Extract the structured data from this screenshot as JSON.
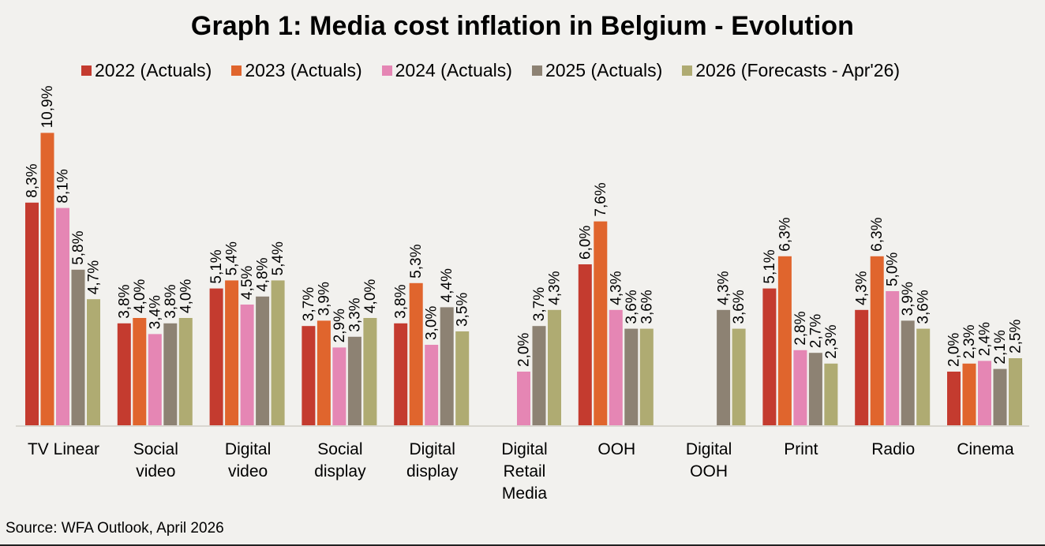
{
  "chart_data": {
    "type": "bar",
    "title": "Graph 1: Media cost inflation in Belgium - Evolution",
    "xlabel": "",
    "ylabel": "",
    "ylim": [
      0,
      11.5
    ],
    "grid": false,
    "legend_position": "top",
    "value_format": "comma-decimal percent",
    "categories": [
      [
        "TV Linear"
      ],
      [
        "Social",
        "video"
      ],
      [
        "Digital",
        "video"
      ],
      [
        "Social",
        "display"
      ],
      [
        "Digital",
        "display"
      ],
      [
        "Digital",
        "Retail",
        "Media"
      ],
      [
        "OOH"
      ],
      [
        "Digital",
        "OOH"
      ],
      [
        "Print"
      ],
      [
        "Radio"
      ],
      [
        "Cinema"
      ]
    ],
    "series": [
      {
        "name": "2022 (Actuals)",
        "color": "#c43b2f",
        "values": [
          8.3,
          3.8,
          5.1,
          3.7,
          3.8,
          null,
          6.0,
          null,
          5.1,
          4.3,
          2.0
        ]
      },
      {
        "name": "2023 (Actuals)",
        "color": "#e0652d",
        "values": [
          10.9,
          4.0,
          5.4,
          3.9,
          5.3,
          null,
          7.6,
          null,
          6.3,
          6.3,
          2.3
        ]
      },
      {
        "name": "2024 (Actuals)",
        "color": "#e586b4",
        "values": [
          8.1,
          3.4,
          4.5,
          2.9,
          3.0,
          2.0,
          4.3,
          null,
          2.8,
          5.0,
          2.4
        ]
      },
      {
        "name": "2025 (Actuals)",
        "color": "#8d8273",
        "values": [
          5.8,
          3.8,
          4.8,
          3.3,
          4.4,
          3.7,
          3.6,
          4.3,
          2.7,
          3.9,
          2.1
        ]
      },
      {
        "name": "2026 (Forecasts - Apr'26)",
        "color": "#afab72",
        "values": [
          4.7,
          4.0,
          5.4,
          4.0,
          3.5,
          4.3,
          3.6,
          3.6,
          2.3,
          3.6,
          2.5
        ]
      }
    ],
    "source": "Source: WFA Outlook, April 2026"
  }
}
